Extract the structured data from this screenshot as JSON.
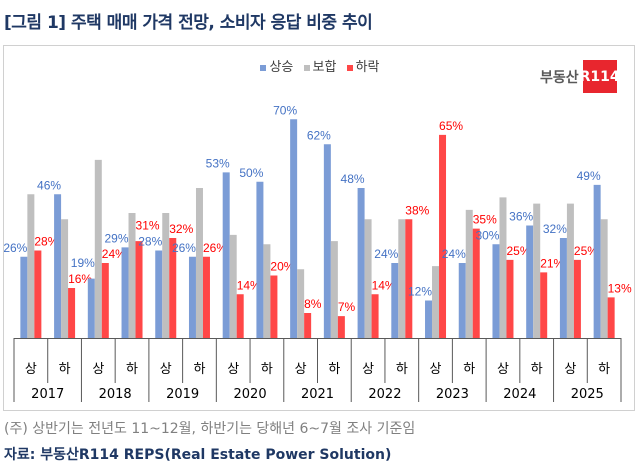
{
  "title": "[그림 1] 주택 매매 가격 전망, 소비자 응답 비중 추이",
  "logo": {
    "text": "부동산",
    "box": "R114"
  },
  "note": "(주) 상반기는 전년도 11~12월, 하반기는 당해년 6~7월 조사 기준임",
  "source": "자료: 부동산R114 REPS(Real Estate Power Solution)",
  "chart_data": {
    "type": "bar",
    "years": [
      "2017",
      "2018",
      "2019",
      "2020",
      "2021",
      "2022",
      "2023",
      "2024",
      "2025"
    ],
    "halves": [
      "상",
      "하"
    ],
    "categories": [
      "2017 상",
      "2017 하",
      "2018 상",
      "2018 하",
      "2019 상",
      "2019 하",
      "2020 상",
      "2020 하",
      "2021 상",
      "2021 하",
      "2022 상",
      "2022 하",
      "2023 상",
      "2023 하",
      "2024 상",
      "2024 하",
      "2025 상",
      "2025 하"
    ],
    "series": [
      {
        "name": "상승",
        "color": "#7b9cd6",
        "label_color": "#4472c4",
        "labeled": true,
        "values": [
          26,
          46,
          19,
          29,
          28,
          26,
          53,
          50,
          70,
          62,
          48,
          24,
          12,
          24,
          30,
          36,
          32,
          49
        ]
      },
      {
        "name": "보합",
        "color": "#bfbfbf",
        "labeled": false,
        "values": [
          46,
          38,
          57,
          40,
          40,
          48,
          33,
          30,
          22,
          31,
          38,
          38,
          23,
          41,
          45,
          43,
          43,
          38
        ]
      },
      {
        "name": "하락",
        "color": "#ff4747",
        "label_color": "#ff0000",
        "labeled": true,
        "values": [
          28,
          16,
          24,
          31,
          32,
          26,
          14,
          20,
          8,
          7,
          14,
          38,
          65,
          35,
          25,
          21,
          25,
          13
        ]
      }
    ],
    "unit": "%",
    "ylim": [
      0,
      75
    ],
    "grid": false,
    "legend": "top-center"
  }
}
